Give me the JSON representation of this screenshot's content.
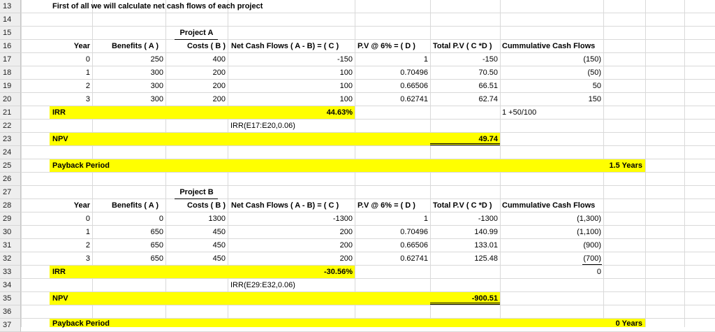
{
  "rows": [
    "13",
    "14",
    "15",
    "16",
    "17",
    "18",
    "19",
    "20",
    "21",
    "22",
    "23",
    "24",
    "25",
    "26",
    "27",
    "28",
    "29",
    "30",
    "31",
    "32",
    "33",
    "34",
    "35",
    "36",
    "37"
  ],
  "intro": "First of all we will calculate net cash flows of each project",
  "projectA": {
    "title": "Project A",
    "headers": [
      "Year",
      "Benefits ( A )",
      "Costs ( B )",
      "Net Cash Flows ( A - B) = ( C )",
      "P.V @ 6% = ( D )",
      "Total P.V ( C *D )",
      "Cummulative Cash Flows"
    ],
    "rows": [
      [
        "0",
        "250",
        "400",
        "-150",
        "1",
        "-150",
        "(150)"
      ],
      [
        "1",
        "300",
        "200",
        "100",
        "0.70496",
        "70.50",
        "(50)"
      ],
      [
        "2",
        "300",
        "200",
        "100",
        "0.66506",
        "66.51",
        "50"
      ],
      [
        "3",
        "300",
        "200",
        "100",
        "0.62741",
        "62.74",
        "150"
      ]
    ],
    "irr_label": "IRR",
    "irr_value": "44.63%",
    "irr_note": "1 +50/100",
    "irr_formula": "IRR(E17:E20,0.06)",
    "npv_label": "NPV",
    "npv_value": "49.74",
    "payback_label": "Payback Period",
    "payback_value": "1.5 Years"
  },
  "projectB": {
    "title": "Project B",
    "headers": [
      "Year",
      "Benefits ( A )",
      "Costs ( B )",
      "Net Cash Flows ( A - B) = ( C )",
      "P.V @ 6% = ( D )",
      "Total P.V ( C *D )",
      "Cummulative Cash Flows"
    ],
    "rows": [
      [
        "0",
        "0",
        "1300",
        "-1300",
        "1",
        "-1300",
        "(1,300)"
      ],
      [
        "1",
        "650",
        "450",
        "200",
        "0.70496",
        "140.99",
        "(1,100)"
      ],
      [
        "2",
        "650",
        "450",
        "200",
        "0.66506",
        "133.01",
        "(900)"
      ],
      [
        "3",
        "650",
        "450",
        "200",
        "0.62741",
        "125.48",
        "(700)"
      ]
    ],
    "irr_label": "IRR",
    "irr_value": "-30.56%",
    "irr_extra": "0",
    "irr_formula": "IRR(E29:E32,0.06)",
    "npv_label": "NPV",
    "npv_value": "-900.51",
    "payback_label": "Payback Period",
    "payback_value": "0 Years"
  },
  "colors": {
    "highlight": "#ffff00",
    "grid": "#d9d9d9",
    "header_bg": "#eeeeee"
  }
}
